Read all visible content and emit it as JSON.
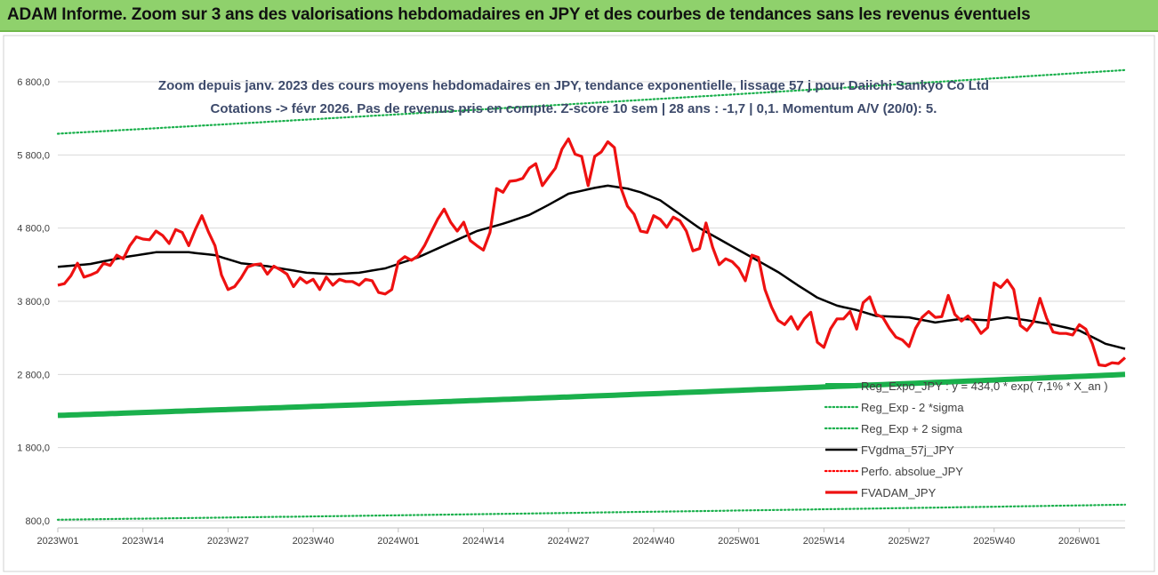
{
  "banner": {
    "title": "ADAM Informe. Zoom sur 3 ans des valorisations hebdomadaires en JPY et des courbes de tendances sans les revenus éventuels",
    "color": "#8fd16c"
  },
  "chart_data": {
    "type": "line",
    "title_line1": "Zoom depuis janv. 2023 des cours moyens hebdomadaires en JPY, tendance exponentielle, lissage 57 j pour Daiichi Sankyo Co Ltd",
    "title_line2": "Cotations -> févr 2026. Pas de revenus pris en compte. Z-score 10 sem | 28 ans : -1,7 | 0,1. Momentum A/V (20/0): 5.",
    "ylim": [
      800,
      7000
    ],
    "yticks": [
      800,
      1800,
      2800,
      3800,
      4800,
      5800,
      6800
    ],
    "ytick_labels": [
      "800,0",
      "1 800,0",
      "2 800,0",
      "3 800,0",
      "4 800,0",
      "5 800,0",
      "6 800,0"
    ],
    "xticks": [
      0,
      13,
      26,
      39,
      52,
      65,
      78,
      91,
      104,
      117,
      130,
      143,
      156
    ],
    "xtick_labels": [
      "2023W01",
      "2023W14",
      "2023W27",
      "2023W40",
      "2024W01",
      "2024W14",
      "2024W27",
      "2024W40",
      "2025W01",
      "2025W14",
      "2025W27",
      "2025W40",
      "2026W01"
    ],
    "x_count": 163,
    "grid": "horizontal",
    "legend_position": "bottom-right",
    "series": [
      {
        "name": "Reg_Expo_JPY : y = 434,0 * exp( 7,1% * X_an )",
        "color": "#1ab04c",
        "style": "thick",
        "start": 2240,
        "end": 2800
      },
      {
        "name": "Reg_Exp - 2 *sigma",
        "color": "#1ab04c",
        "style": "dotted",
        "start": 815,
        "end": 1020
      },
      {
        "name": "Reg_Exp + 2 sigma",
        "color": "#1ab04c",
        "style": "dotted",
        "start": 6090,
        "end": 6960
      },
      {
        "name": "FVgdma_57j_JPY",
        "color": "#000000",
        "style": "solid",
        "knots": [
          [
            0,
            4270
          ],
          [
            5,
            4310
          ],
          [
            10,
            4400
          ],
          [
            15,
            4470
          ],
          [
            20,
            4470
          ],
          [
            24,
            4430
          ],
          [
            28,
            4320
          ],
          [
            32,
            4280
          ],
          [
            38,
            4190
          ],
          [
            42,
            4170
          ],
          [
            46,
            4190
          ],
          [
            50,
            4250
          ],
          [
            55,
            4400
          ],
          [
            60,
            4600
          ],
          [
            64,
            4760
          ],
          [
            68,
            4860
          ],
          [
            72,
            4980
          ],
          [
            75,
            5120
          ],
          [
            78,
            5270
          ],
          [
            82,
            5350
          ],
          [
            84,
            5380
          ],
          [
            87,
            5340
          ],
          [
            89,
            5290
          ],
          [
            92,
            5180
          ],
          [
            95,
            4990
          ],
          [
            98,
            4800
          ],
          [
            102,
            4600
          ],
          [
            106,
            4400
          ],
          [
            110,
            4200
          ],
          [
            113,
            4020
          ],
          [
            116,
            3850
          ],
          [
            119,
            3740
          ],
          [
            122,
            3680
          ],
          [
            125,
            3600
          ],
          [
            130,
            3580
          ],
          [
            134,
            3510
          ],
          [
            138,
            3560
          ],
          [
            142,
            3540
          ],
          [
            145,
            3580
          ],
          [
            148,
            3540
          ],
          [
            152,
            3480
          ],
          [
            156,
            3400
          ],
          [
            160,
            3220
          ],
          [
            163,
            3150
          ]
        ]
      },
      {
        "name": "Perfo. absolue_JPY",
        "color": "#ff0000",
        "style": "dotted",
        "hidden": true
      },
      {
        "name": "FVADAM_JPY",
        "color": "#ee1111",
        "style": "thick-solid",
        "knots": [
          [
            0,
            4020
          ],
          [
            1,
            4040
          ],
          [
            2,
            4150
          ],
          [
            3,
            4320
          ],
          [
            4,
            4130
          ],
          [
            5,
            4160
          ],
          [
            6,
            4200
          ],
          [
            7,
            4320
          ],
          [
            8,
            4290
          ],
          [
            9,
            4430
          ],
          [
            10,
            4380
          ],
          [
            11,
            4560
          ],
          [
            12,
            4680
          ],
          [
            13,
            4650
          ],
          [
            14,
            4640
          ],
          [
            15,
            4760
          ],
          [
            16,
            4700
          ],
          [
            17,
            4590
          ],
          [
            18,
            4780
          ],
          [
            19,
            4740
          ],
          [
            20,
            4560
          ],
          [
            21,
            4780
          ],
          [
            22,
            4970
          ],
          [
            23,
            4750
          ],
          [
            24,
            4560
          ],
          [
            25,
            4160
          ],
          [
            26,
            3960
          ],
          [
            27,
            4000
          ],
          [
            28,
            4120
          ],
          [
            29,
            4270
          ],
          [
            30,
            4300
          ],
          [
            31,
            4310
          ],
          [
            32,
            4170
          ],
          [
            33,
            4280
          ],
          [
            34,
            4230
          ],
          [
            35,
            4170
          ],
          [
            36,
            4000
          ],
          [
            37,
            4120
          ],
          [
            38,
            4050
          ],
          [
            39,
            4100
          ],
          [
            40,
            3960
          ],
          [
            41,
            4130
          ],
          [
            42,
            4020
          ],
          [
            43,
            4100
          ],
          [
            44,
            4070
          ],
          [
            45,
            4070
          ],
          [
            46,
            4020
          ],
          [
            47,
            4100
          ],
          [
            48,
            4080
          ],
          [
            49,
            3920
          ],
          [
            50,
            3900
          ],
          [
            51,
            3960
          ],
          [
            52,
            4340
          ],
          [
            53,
            4410
          ],
          [
            54,
            4360
          ],
          [
            55,
            4420
          ],
          [
            56,
            4560
          ],
          [
            57,
            4740
          ],
          [
            58,
            4920
          ],
          [
            59,
            5060
          ],
          [
            60,
            4880
          ],
          [
            61,
            4760
          ],
          [
            62,
            4880
          ],
          [
            63,
            4630
          ],
          [
            64,
            4560
          ],
          [
            65,
            4500
          ],
          [
            66,
            4740
          ],
          [
            67,
            5340
          ],
          [
            68,
            5290
          ],
          [
            69,
            5440
          ],
          [
            70,
            5450
          ],
          [
            71,
            5480
          ],
          [
            72,
            5620
          ],
          [
            73,
            5680
          ],
          [
            74,
            5380
          ],
          [
            75,
            5500
          ],
          [
            76,
            5620
          ],
          [
            77,
            5880
          ],
          [
            78,
            6020
          ],
          [
            79,
            5810
          ],
          [
            80,
            5780
          ],
          [
            81,
            5380
          ],
          [
            82,
            5780
          ],
          [
            83,
            5840
          ],
          [
            84,
            5980
          ],
          [
            85,
            5900
          ],
          [
            86,
            5350
          ],
          [
            87,
            5100
          ],
          [
            88,
            4990
          ],
          [
            89,
            4760
          ],
          [
            90,
            4740
          ],
          [
            91,
            4970
          ],
          [
            92,
            4920
          ],
          [
            93,
            4810
          ],
          [
            94,
            4950
          ],
          [
            95,
            4900
          ],
          [
            96,
            4760
          ],
          [
            97,
            4490
          ],
          [
            98,
            4520
          ],
          [
            99,
            4870
          ],
          [
            100,
            4540
          ],
          [
            101,
            4300
          ],
          [
            102,
            4380
          ],
          [
            103,
            4340
          ],
          [
            104,
            4250
          ],
          [
            105,
            4080
          ],
          [
            106,
            4430
          ],
          [
            107,
            4400
          ],
          [
            108,
            3960
          ],
          [
            109,
            3720
          ],
          [
            110,
            3540
          ],
          [
            111,
            3480
          ],
          [
            112,
            3590
          ],
          [
            113,
            3420
          ],
          [
            114,
            3560
          ],
          [
            115,
            3650
          ],
          [
            116,
            3240
          ],
          [
            117,
            3170
          ],
          [
            118,
            3420
          ],
          [
            119,
            3560
          ],
          [
            120,
            3560
          ],
          [
            121,
            3660
          ],
          [
            122,
            3420
          ],
          [
            123,
            3780
          ],
          [
            124,
            3860
          ],
          [
            125,
            3620
          ],
          [
            126,
            3580
          ],
          [
            127,
            3430
          ],
          [
            128,
            3310
          ],
          [
            129,
            3270
          ],
          [
            130,
            3180
          ],
          [
            131,
            3430
          ],
          [
            132,
            3580
          ],
          [
            133,
            3660
          ],
          [
            134,
            3580
          ],
          [
            135,
            3590
          ],
          [
            136,
            3880
          ],
          [
            137,
            3620
          ],
          [
            138,
            3530
          ],
          [
            139,
            3600
          ],
          [
            140,
            3500
          ],
          [
            141,
            3360
          ],
          [
            142,
            3440
          ],
          [
            143,
            4050
          ],
          [
            144,
            3990
          ],
          [
            145,
            4090
          ],
          [
            146,
            3960
          ],
          [
            147,
            3470
          ],
          [
            148,
            3400
          ],
          [
            149,
            3520
          ],
          [
            150,
            3840
          ],
          [
            151,
            3570
          ],
          [
            152,
            3380
          ],
          [
            153,
            3360
          ],
          [
            154,
            3360
          ],
          [
            155,
            3340
          ],
          [
            156,
            3480
          ],
          [
            157,
            3420
          ],
          [
            158,
            3220
          ],
          [
            159,
            2930
          ],
          [
            160,
            2920
          ],
          [
            161,
            2960
          ],
          [
            162,
            2950
          ],
          [
            163,
            3030
          ]
        ]
      }
    ]
  }
}
